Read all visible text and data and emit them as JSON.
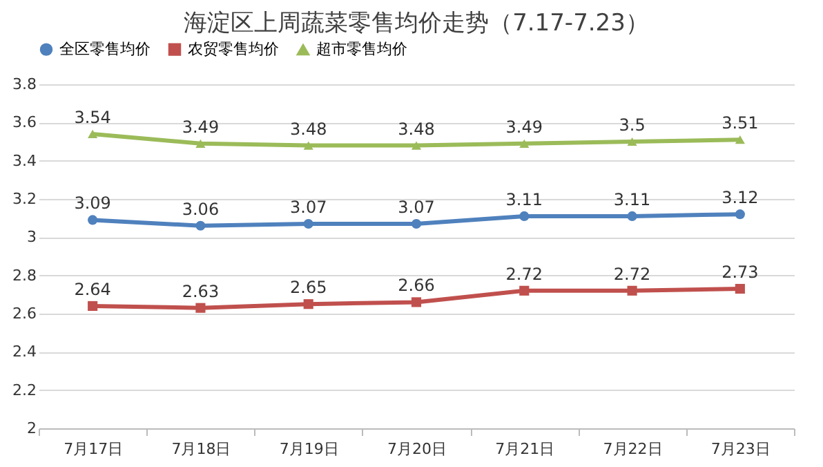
{
  "chart_data": {
    "type": "line",
    "title": "海淀区上周蔬菜零售均价走势（7.17-7.23）",
    "categories": [
      "7月17日",
      "7月18日",
      "7月19日",
      "7月20日",
      "7月21日",
      "7月22日",
      "7月23日"
    ],
    "series": [
      {
        "name": "全区零售均价",
        "color": "#4f81bd",
        "marker": "circle",
        "values": [
          3.09,
          3.06,
          3.07,
          3.07,
          3.11,
          3.11,
          3.12
        ]
      },
      {
        "name": "农贸零售均价",
        "color": "#c0504d",
        "marker": "square",
        "values": [
          2.64,
          2.63,
          2.65,
          2.66,
          2.72,
          2.72,
          2.73
        ]
      },
      {
        "name": "超市零售均价",
        "color": "#9bbb59",
        "marker": "triangle",
        "values": [
          3.54,
          3.49,
          3.48,
          3.48,
          3.49,
          3.5,
          3.51
        ]
      }
    ],
    "ylim": [
      2,
      3.8
    ],
    "yticks": [
      2,
      2.2,
      2.4,
      2.6,
      2.8,
      3,
      3.2,
      3.4,
      3.6,
      3.8
    ],
    "grid": "y",
    "legend": "top",
    "data_labels": true,
    "line_style": "solid"
  }
}
